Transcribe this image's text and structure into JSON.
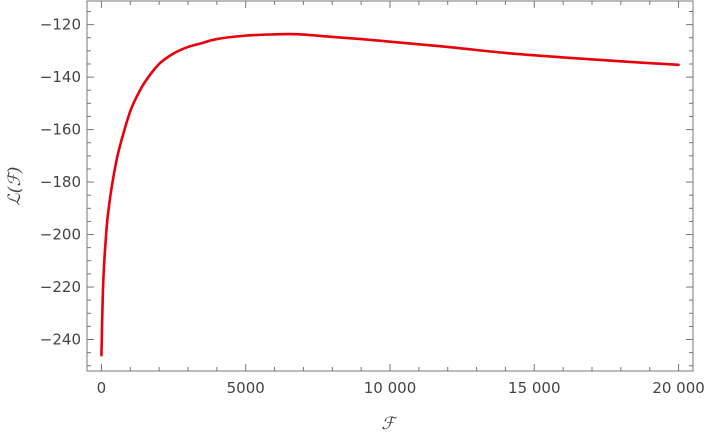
{
  "chart_data": {
    "type": "line",
    "title": "",
    "xlabel": "ℱ",
    "ylabel": "ℒ(ℱ)",
    "xlim": [
      -500,
      20500
    ],
    "ylim": [
      -252,
      -111
    ],
    "x_ticks": [
      0,
      5000,
      10000,
      15000,
      20000
    ],
    "x_tick_labels": [
      "0",
      "5000",
      "10 000",
      "15 000",
      "20 000"
    ],
    "y_ticks": [
      -120,
      -140,
      -160,
      -180,
      -200,
      -220,
      -240
    ],
    "y_tick_labels": [
      "−120",
      "−140",
      "−160",
      "−180",
      "−200",
      "−220",
      "−240"
    ],
    "grid": false,
    "frame": true,
    "series": [
      {
        "color": "#e8000b",
        "x": [
          0,
          50,
          100,
          150,
          200,
          300,
          400,
          500,
          600,
          800,
          1000,
          1200,
          1500,
          2000,
          2500,
          3000,
          3500,
          4000,
          5000,
          6000,
          6500,
          7000,
          8000,
          9000,
          10000,
          12000,
          14000,
          16000,
          18000,
          20000
        ],
        "y": [
          -246,
          -222,
          -210,
          -202,
          -195,
          -186,
          -179,
          -173,
          -168,
          -160,
          -153,
          -148,
          -142,
          -135,
          -131,
          -128.5,
          -127,
          -125.5,
          -124.2,
          -123.7,
          -123.6,
          -123.8,
          -124.7,
          -125.5,
          -126.5,
          -128.5,
          -130.8,
          -132.5,
          -134,
          -135.3
        ]
      }
    ]
  }
}
